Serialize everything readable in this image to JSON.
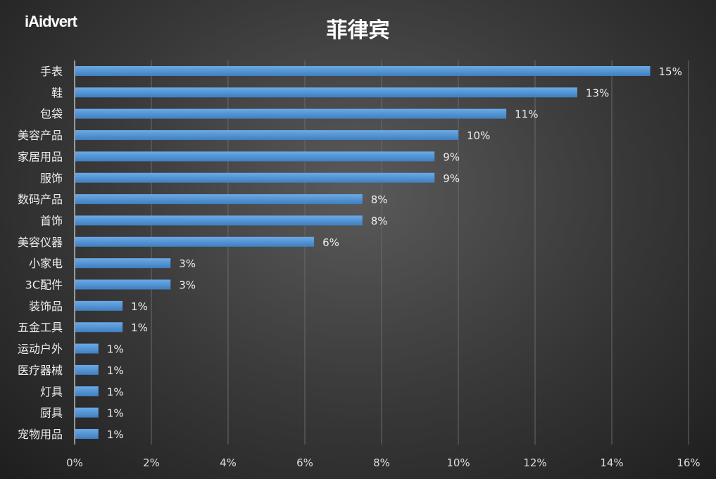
{
  "logo": "iAidvert",
  "chart_data": {
    "type": "bar",
    "orientation": "horizontal",
    "title": "菲律宾",
    "categories": [
      "手表",
      "鞋",
      "包袋",
      "美容产品",
      "家居用品",
      "服饰",
      "数码产品",
      "首饰",
      "美容仪器",
      "小家电",
      "3C配件",
      "装饰品",
      "五金工具",
      "运动户外",
      "医疗器械",
      "灯具",
      "厨具",
      "宠物用品"
    ],
    "values": [
      15,
      13.1,
      11.25,
      10,
      9.38,
      9.38,
      7.5,
      7.5,
      6.24,
      2.5,
      2.5,
      1.25,
      1.25,
      0.62,
      0.62,
      0.62,
      0.62,
      0.62
    ],
    "data_labels": [
      "15%",
      "13%",
      "11%",
      "10%",
      "9%",
      "9%",
      "8%",
      "8%",
      "6%",
      "3%",
      "3%",
      "1%",
      "1%",
      "1%",
      "1%",
      "1%",
      "1%",
      "1%"
    ],
    "xlim": [
      0,
      16
    ],
    "xticks": [
      "0%",
      "2%",
      "4%",
      "6%",
      "8%",
      "10%",
      "12%",
      "14%",
      "16%"
    ],
    "grid": "vertical",
    "bar_color": "#5b9bd5",
    "xlabel": "",
    "ylabel": ""
  }
}
